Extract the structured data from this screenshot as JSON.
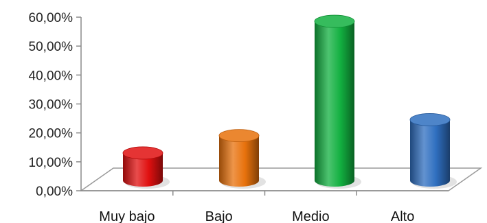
{
  "chart_data": {
    "type": "bar",
    "categories": [
      "Muy bajo",
      "Bajo",
      "Medio",
      "Alto"
    ],
    "values": [
      9.5,
      15.5,
      55.0,
      21.0
    ],
    "ylim": [
      0,
      60
    ],
    "yticks": [
      0,
      10,
      20,
      30,
      40,
      50,
      60
    ],
    "ytick_labels": [
      "0,00%",
      "10,00%",
      "20,00%",
      "30,00%",
      "40,00%",
      "50,00%",
      "60,00%"
    ],
    "colors": [
      "#e01010",
      "#e8720c",
      "#12b040",
      "#2f6fc0"
    ],
    "grid": false,
    "legend": "none",
    "style": "3d-cylinder"
  }
}
